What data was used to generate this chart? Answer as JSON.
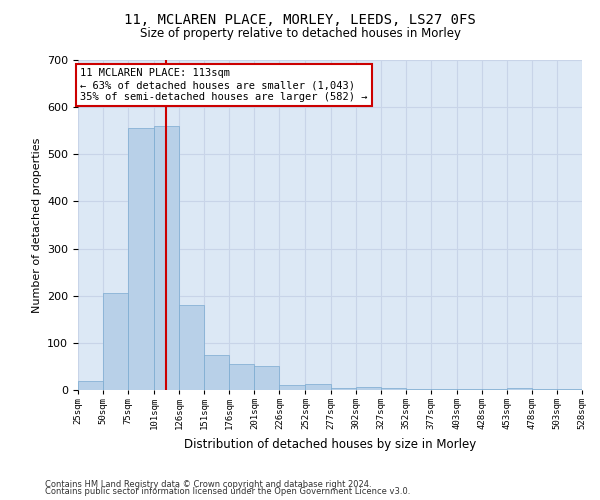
{
  "title": "11, MCLAREN PLACE, MORLEY, LEEDS, LS27 0FS",
  "subtitle": "Size of property relative to detached houses in Morley",
  "xlabel": "Distribution of detached houses by size in Morley",
  "ylabel": "Number of detached properties",
  "footnote1": "Contains HM Land Registry data © Crown copyright and database right 2024.",
  "footnote2": "Contains public sector information licensed under the Open Government Licence v3.0.",
  "annotation_line1": "11 MCLAREN PLACE: 113sqm",
  "annotation_line2": "← 63% of detached houses are smaller (1,043)",
  "annotation_line3": "35% of semi-detached houses are larger (582) →",
  "bar_color": "#b8d0e8",
  "bar_edge_color": "#7aaad0",
  "grid_color": "#c8d4e8",
  "background_color": "#dce8f5",
  "annotation_box_color": "#ffffff",
  "annotation_box_edge_color": "#cc0000",
  "vline_color": "#cc0000",
  "property_size": 113,
  "bin_edges": [
    25,
    50,
    75,
    101,
    126,
    151,
    176,
    201,
    226,
    252,
    277,
    302,
    327,
    352,
    377,
    403,
    428,
    453,
    478,
    503,
    528
  ],
  "bin_labels": [
    "25sqm",
    "50sqm",
    "75sqm",
    "101sqm",
    "126sqm",
    "151sqm",
    "176sqm",
    "201sqm",
    "226sqm",
    "252sqm",
    "277sqm",
    "302sqm",
    "327sqm",
    "352sqm",
    "377sqm",
    "403sqm",
    "428sqm",
    "453sqm",
    "478sqm",
    "503sqm",
    "528sqm"
  ],
  "bar_heights": [
    20,
    205,
    555,
    560,
    180,
    75,
    55,
    50,
    10,
    12,
    5,
    6,
    4,
    2,
    2,
    2,
    2,
    4,
    2,
    2
  ],
  "ylim": [
    0,
    700
  ],
  "yticks": [
    0,
    100,
    200,
    300,
    400,
    500,
    600,
    700
  ],
  "figsize": [
    6.0,
    5.0
  ],
  "dpi": 100
}
